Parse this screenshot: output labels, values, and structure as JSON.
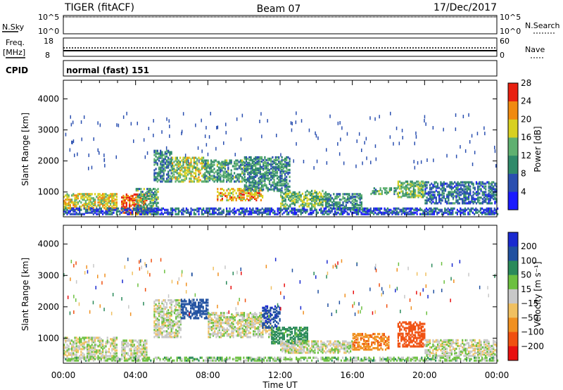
{
  "header": {
    "radar": "TIGER (fitACF)",
    "beam": "Beam 07",
    "date": "17/Dec/2017"
  },
  "top_panels": {
    "nsky_label": "N.Sky",
    "nsearch_label": "N.Search",
    "nsky_ticks": [
      "10^5",
      "10^0"
    ],
    "nsearch_ticks": [
      "10^5",
      "10^0"
    ],
    "freq_label_1": "Freq.",
    "freq_label_2": "[MHz]",
    "freq_ticks": [
      "18",
      "8"
    ],
    "nave_label": "Nave",
    "nave_ticks": [
      "60",
      "0"
    ],
    "cpid_label": "CPID",
    "cpid_value": "normal (fast) 151"
  },
  "chart_data": [
    {
      "type": "heatmap",
      "name": "power-panel",
      "ylabel": "Slant Range [km]",
      "xlabel": "",
      "y_ticks": [
        1000,
        2000,
        3000,
        4000
      ],
      "ylim": [
        200,
        4600
      ],
      "x_hours_range": [
        0,
        24
      ],
      "colorbar": {
        "label": "Power [dB]",
        "ticks": [
          4,
          8,
          12,
          16,
          20,
          24,
          28
        ],
        "colors": [
          "#1a1aff",
          "#2a4fb0",
          "#2f8a6a",
          "#5fb070",
          "#d8d020",
          "#f08a10",
          "#e82010"
        ]
      },
      "echo_regions": [
        {
          "t0": 0.0,
          "t1": 3.0,
          "r0": 400,
          "r1": 900,
          "level": 20
        },
        {
          "t0": 3.2,
          "t1": 4.6,
          "r0": 250,
          "r1": 900,
          "level": 26
        },
        {
          "t0": 4.0,
          "t1": 5.2,
          "r0": 250,
          "r1": 1100,
          "level": 14
        },
        {
          "t0": 5.0,
          "t1": 6.0,
          "r0": 1300,
          "r1": 2300,
          "level": 12
        },
        {
          "t0": 6.0,
          "t1": 7.8,
          "r0": 1300,
          "r1": 2100,
          "level": 18
        },
        {
          "t0": 7.8,
          "t1": 10.0,
          "r0": 1300,
          "r1": 2000,
          "level": 14
        },
        {
          "t0": 8.5,
          "t1": 11.0,
          "r0": 700,
          "r1": 1100,
          "level": 22
        },
        {
          "t0": 10.0,
          "t1": 12.5,
          "r0": 1000,
          "r1": 2100,
          "level": 12
        },
        {
          "t0": 12.0,
          "t1": 14.5,
          "r0": 500,
          "r1": 1000,
          "level": 16
        },
        {
          "t0": 14.5,
          "t1": 16.5,
          "r0": 400,
          "r1": 900,
          "level": 12
        },
        {
          "t0": 17.0,
          "t1": 18.5,
          "r0": 900,
          "r1": 1100,
          "level": 14
        },
        {
          "t0": 18.5,
          "t1": 20.0,
          "r0": 800,
          "r1": 1300,
          "level": 16
        },
        {
          "t0": 20.0,
          "t1": 24.0,
          "r0": 600,
          "r1": 1300,
          "level": 10
        },
        {
          "t0": 0.0,
          "t1": 24.0,
          "r0": 250,
          "r1": 450,
          "level": 8
        }
      ]
    },
    {
      "type": "heatmap",
      "name": "velocity-panel",
      "ylabel": "Slant Range [km]",
      "xlabel": "Time UT",
      "y_ticks": [
        1000,
        2000,
        3000,
        4000
      ],
      "ylim": [
        200,
        4600
      ],
      "x_ticks": [
        "00:00",
        "04:00",
        "08:00",
        "12:00",
        "16:00",
        "20:00",
        "00:00"
      ],
      "colorbar": {
        "label": "Velocity [m s⁻¹]",
        "ticks": [
          "200",
          "100",
          "50",
          "15",
          "−15",
          "−50",
          "−100",
          "−200"
        ],
        "colors": [
          "#1a2ad0",
          "#2050a0",
          "#2a8a5a",
          "#6cc040",
          "#c8c8c8",
          "#f0c060",
          "#f09020",
          "#f05010",
          "#e81010"
        ]
      },
      "echo_regions": [
        {
          "t0": 0.0,
          "t1": 3.0,
          "r0": 300,
          "r1": 1000,
          "level": 0
        },
        {
          "t0": 3.2,
          "t1": 4.6,
          "r0": 300,
          "r1": 900,
          "level": 0
        },
        {
          "t0": 5.0,
          "t1": 6.5,
          "r0": 1000,
          "r1": 2200,
          "level": 0
        },
        {
          "t0": 6.5,
          "t1": 8.0,
          "r0": 1600,
          "r1": 2200,
          "level": 150
        },
        {
          "t0": 8.0,
          "t1": 11.5,
          "r0": 1000,
          "r1": 1800,
          "level": 0
        },
        {
          "t0": 11.0,
          "t1": 12.0,
          "r0": 1300,
          "r1": 2000,
          "level": 180
        },
        {
          "t0": 11.5,
          "t1": 13.5,
          "r0": 800,
          "r1": 1300,
          "level": 70
        },
        {
          "t0": 12.0,
          "t1": 16.0,
          "r0": 500,
          "r1": 900,
          "level": 0
        },
        {
          "t0": 16.0,
          "t1": 18.0,
          "r0": 600,
          "r1": 1100,
          "level": -80
        },
        {
          "t0": 18.5,
          "t1": 20.0,
          "r0": 700,
          "r1": 1500,
          "level": -150
        },
        {
          "t0": 20.0,
          "t1": 24.0,
          "r0": 400,
          "r1": 900,
          "level": 0
        },
        {
          "t0": 0.0,
          "t1": 24.0,
          "r0": 250,
          "r1": 350,
          "level": 30
        }
      ]
    }
  ],
  "colors": {
    "axis": "#000000",
    "background": "#ffffff"
  }
}
